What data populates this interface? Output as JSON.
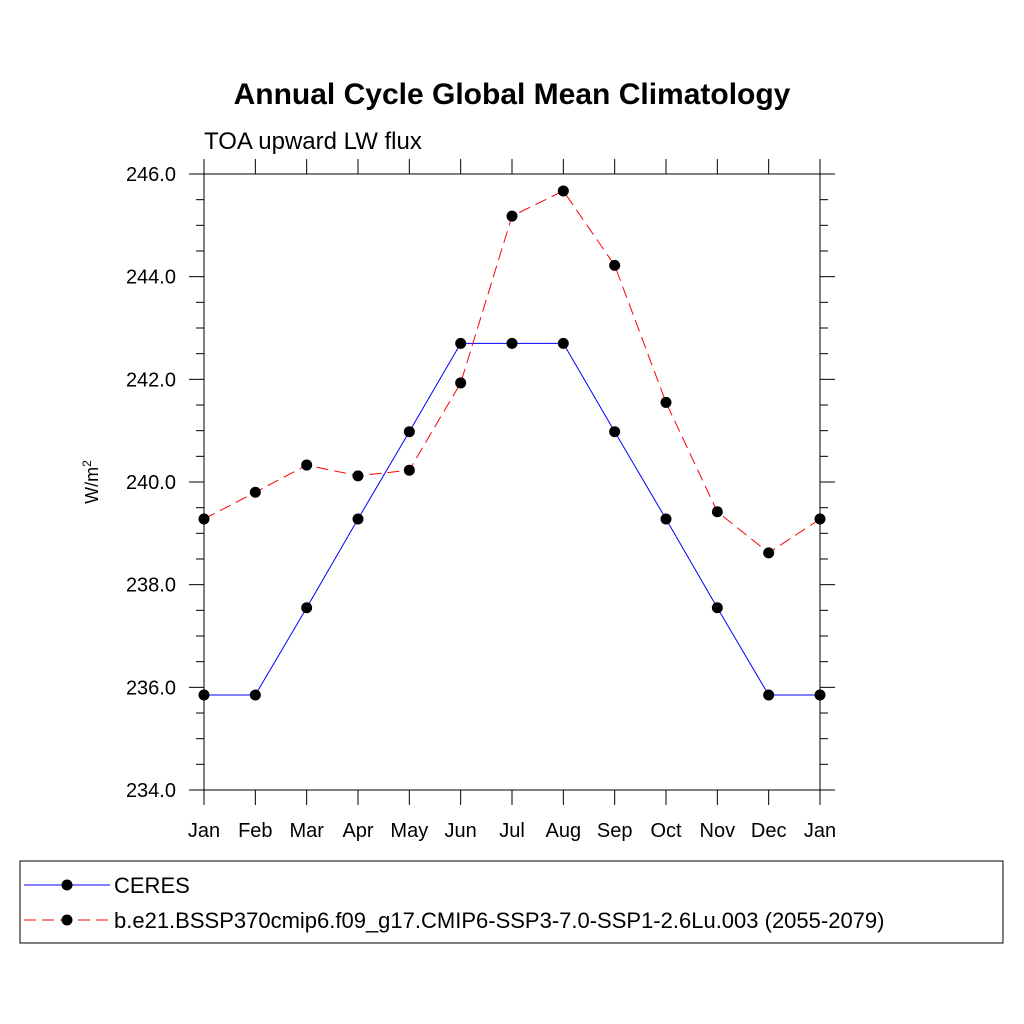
{
  "chart_data": {
    "type": "line",
    "title": "Annual Cycle Global Mean Climatology",
    "subtitle": "TOA upward LW flux",
    "ylabel_base": "W/m",
    "ylabel_sup": "2",
    "xlabel": "",
    "categories": [
      "Jan",
      "Feb",
      "Mar",
      "Apr",
      "May",
      "Jun",
      "Jul",
      "Aug",
      "Sep",
      "Oct",
      "Nov",
      "Dec",
      "Jan"
    ],
    "ylim": [
      234.0,
      246.0
    ],
    "yticks": [
      "234.0",
      "236.0",
      "238.0",
      "240.0",
      "242.0",
      "244.0",
      "246.0"
    ],
    "grid": false,
    "legend_position": "bottom",
    "series": [
      {
        "name": "CERES",
        "color": "#0000ff",
        "dash": "solid",
        "values": [
          235.85,
          235.85,
          237.55,
          239.28,
          240.98,
          242.7,
          242.7,
          242.7,
          240.98,
          239.28,
          237.55,
          235.85,
          235.85
        ]
      },
      {
        "name": "b.e21.BSSP370cmip6.f09_g17.CMIP6-SSP3-7.0-SSP1-2.6Lu.003 (2055-2079)",
        "color": "#ff0000",
        "dash": "dashed",
        "values": [
          239.28,
          239.8,
          240.33,
          240.12,
          240.23,
          241.93,
          245.18,
          245.67,
          244.22,
          241.55,
          239.42,
          238.62,
          239.28
        ]
      }
    ]
  }
}
